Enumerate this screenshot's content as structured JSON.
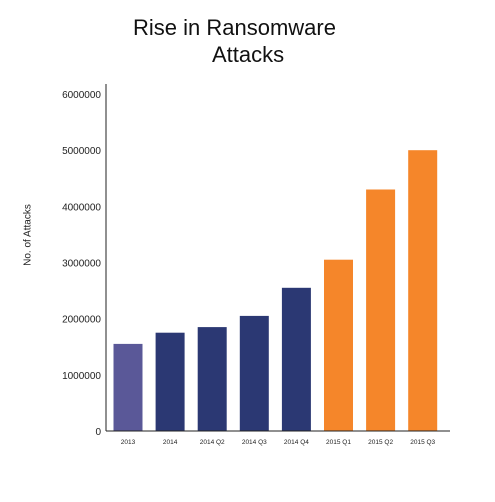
{
  "chart_data": {
    "type": "bar",
    "title_line1": "Rise in Ransomware",
    "title_line2": "Attacks",
    "xlabel": "",
    "ylabel": "No. of Attacks",
    "categories": [
      "2013",
      "2014",
      "2014 Q2",
      "2014 Q3",
      "2014 Q4",
      "2015 Q1",
      "2015 Q2",
      "2015 Q3"
    ],
    "values": [
      1550000,
      1750000,
      1850000,
      2050000,
      2550000,
      3050000,
      4300000,
      5000000
    ],
    "colors": [
      "#5a5898",
      "#2b3873",
      "#2b3873",
      "#2b3873",
      "#2b3873",
      "#f5862a",
      "#f5862a",
      "#f5862a"
    ],
    "ylim": [
      0,
      6000000
    ],
    "yticks": [
      "0",
      "1000000",
      "2000000",
      "3000000",
      "4000000",
      "5000000",
      "6000000"
    ],
    "grid": false,
    "legend": "none"
  }
}
